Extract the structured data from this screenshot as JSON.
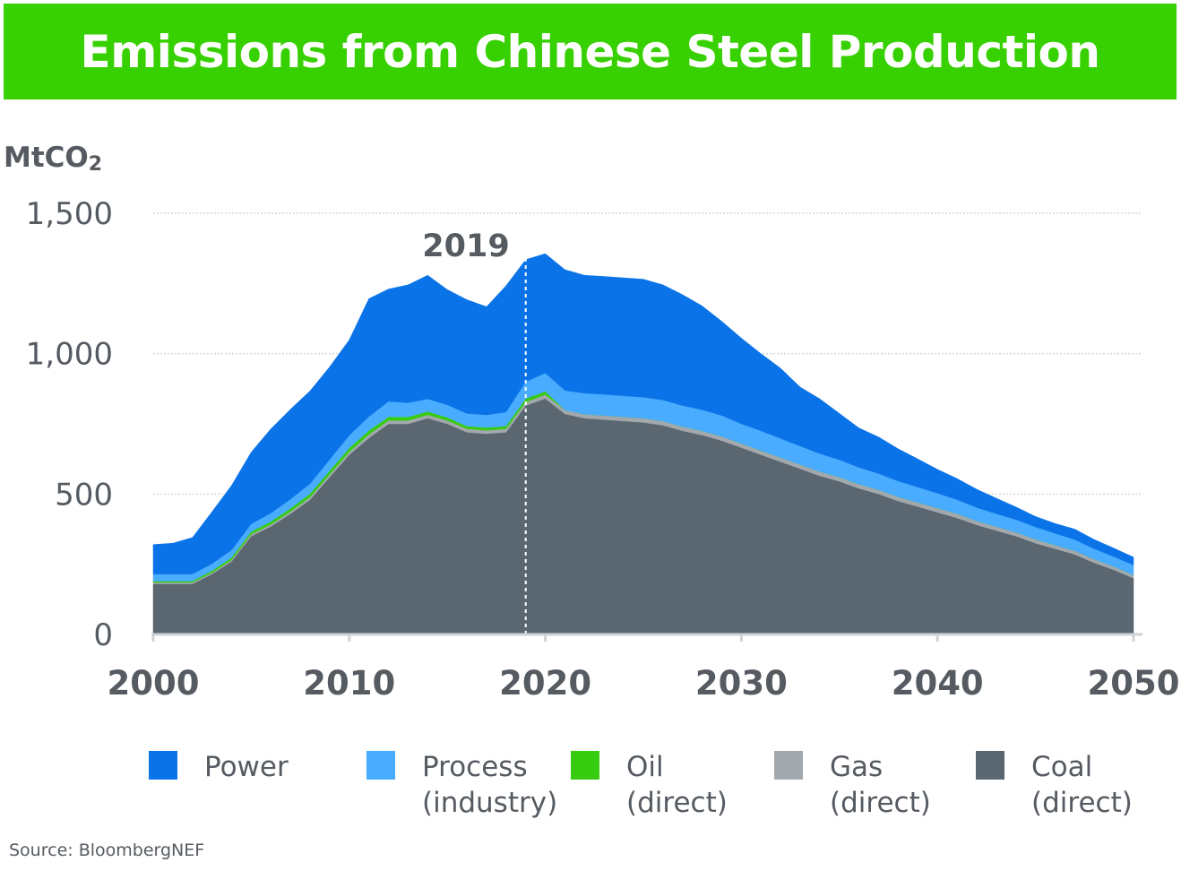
{
  "header": {
    "title": "Emissions from Chinese Steel Production"
  },
  "source": "Source: BloombergNEF",
  "colors": {
    "title_bg": "#37d000",
    "power": "#0a73e8",
    "process": "#4aacff",
    "oil": "#37cc10",
    "gas": "#a3a8ad",
    "coal": "#5a6670",
    "axis_text": "#555b61",
    "grid": "#d6d6d6"
  },
  "chart_data": {
    "type": "area",
    "stacked": true,
    "unit_label": "MtCO",
    "unit_sub": "2",
    "x_ticks": [
      "2000",
      "2010",
      "2020",
      "2030",
      "2040",
      "2050"
    ],
    "y_ticks": [
      "0",
      "500",
      "1,000",
      "1,500"
    ],
    "ylim": [
      0,
      1500
    ],
    "xlim": [
      2000,
      2050
    ],
    "grid": true,
    "annotation": {
      "label": "2019",
      "x": 2019
    },
    "x": [
      2000,
      2001,
      2002,
      2003,
      2004,
      2005,
      2006,
      2007,
      2008,
      2009,
      2010,
      2011,
      2012,
      2013,
      2014,
      2015,
      2016,
      2017,
      2018,
      2019,
      2020,
      2021,
      2022,
      2023,
      2024,
      2025,
      2026,
      2027,
      2028,
      2029,
      2030,
      2031,
      2032,
      2033,
      2034,
      2035,
      2036,
      2037,
      2038,
      2039,
      2040,
      2041,
      2042,
      2043,
      2044,
      2045,
      2046,
      2047,
      2048,
      2049,
      2050
    ],
    "series": [
      {
        "name": "Coal\n(direct)",
        "key": "coal",
        "values": [
          180,
          180,
          180,
          215,
          260,
          350,
          385,
          430,
          480,
          560,
          640,
          700,
          750,
          750,
          770,
          750,
          720,
          715,
          720,
          815,
          840,
          785,
          770,
          765,
          760,
          755,
          745,
          725,
          710,
          690,
          665,
          640,
          615,
          590,
          565,
          545,
          520,
          500,
          475,
          455,
          435,
          415,
          390,
          370,
          350,
          325,
          305,
          285,
          255,
          230,
          200
        ]
      },
      {
        "name": "Gas\n(direct)",
        "key": "gas",
        "values": [
          5,
          5,
          5,
          5,
          6,
          7,
          7,
          8,
          9,
          10,
          10,
          12,
          12,
          12,
          12,
          12,
          12,
          12,
          12,
          13,
          14,
          14,
          14,
          15,
          15,
          15,
          15,
          15,
          15,
          15,
          15,
          15,
          15,
          15,
          15,
          15,
          15,
          15,
          15,
          15,
          15,
          15,
          14,
          14,
          14,
          14,
          13,
          13,
          13,
          12,
          12
        ]
      },
      {
        "name": "Oil\n(direct)",
        "key": "oil",
        "values": [
          5,
          5,
          5,
          7,
          8,
          9,
          10,
          11,
          12,
          13,
          14,
          14,
          13,
          13,
          12,
          11,
          10,
          10,
          10,
          12,
          12,
          0,
          0,
          0,
          0,
          0,
          0,
          0,
          0,
          0,
          0,
          0,
          0,
          0,
          0,
          0,
          0,
          0,
          0,
          0,
          0,
          0,
          0,
          0,
          0,
          0,
          0,
          0,
          0,
          0,
          0
        ]
      },
      {
        "name": "Process\n(industry)",
        "key": "process",
        "values": [
          25,
          25,
          25,
          25,
          27,
          28,
          30,
          33,
          36,
          40,
          45,
          50,
          55,
          50,
          45,
          45,
          45,
          45,
          50,
          60,
          65,
          70,
          75,
          75,
          75,
          75,
          75,
          75,
          75,
          75,
          70,
          70,
          68,
          66,
          64,
          62,
          60,
          58,
          56,
          55,
          53,
          50,
          48,
          46,
          45,
          44,
          42,
          40,
          37,
          35,
          35
        ]
      },
      {
        "name": "Power",
        "key": "power",
        "values": [
          105,
          110,
          130,
          185,
          230,
          255,
          300,
          320,
          330,
          330,
          340,
          420,
          400,
          420,
          440,
          410,
          405,
          385,
          450,
          435,
          425,
          430,
          420,
          420,
          420,
          420,
          410,
          395,
          370,
          335,
          305,
          275,
          250,
          210,
          195,
          165,
          140,
          130,
          115,
          100,
          85,
          75,
          65,
          55,
          45,
          37,
          35,
          37,
          33,
          30,
          28
        ]
      }
    ]
  },
  "legend": [
    {
      "key": "power",
      "label": "Power"
    },
    {
      "key": "process",
      "label": "Process\n(industry)"
    },
    {
      "key": "oil",
      "label": "Oil\n(direct)"
    },
    {
      "key": "gas",
      "label": "Gas\n(direct)"
    },
    {
      "key": "coal",
      "label": "Coal\n(direct)"
    }
  ]
}
